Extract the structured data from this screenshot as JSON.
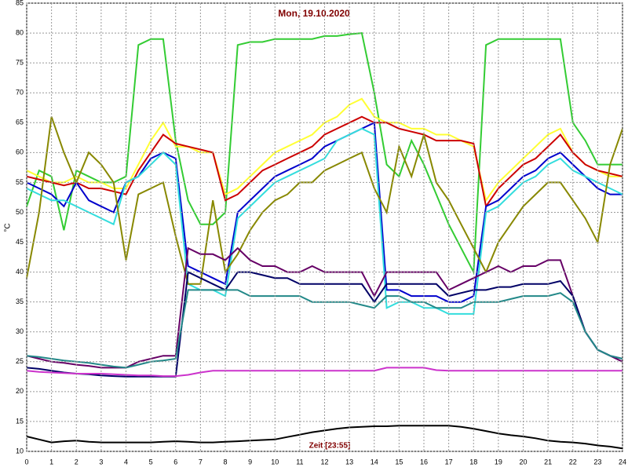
{
  "chart_data": {
    "type": "line",
    "title": "Mon, 19.10.2020",
    "y_label": "°C",
    "annotation": "Zeit [23:55]",
    "x": [
      0,
      0.5,
      1,
      1.5,
      2,
      2.5,
      3,
      3.5,
      4,
      4.5,
      5,
      5.5,
      6,
      6.5,
      7,
      7.5,
      8,
      8.5,
      9,
      9.5,
      10,
      10.5,
      11,
      11.5,
      12,
      12.5,
      13,
      13.5,
      14,
      14.5,
      15,
      15.5,
      16,
      16.5,
      17,
      17.5,
      18,
      18.5,
      19,
      19.5,
      20,
      20.5,
      21,
      21.5,
      22,
      22.5,
      23,
      23.5,
      24
    ],
    "series": [
      {
        "color": "#33cc33",
        "values": [
          51,
          57,
          56,
          47,
          57,
          56,
          55,
          55,
          56,
          78,
          79,
          79,
          62,
          52,
          48,
          48,
          50,
          78,
          78.5,
          78.5,
          79,
          79,
          79,
          79,
          79.5,
          79.5,
          79.8,
          80,
          70,
          58,
          56,
          62,
          58,
          53,
          48,
          44,
          40,
          78,
          79,
          79,
          79,
          79,
          79,
          79,
          65,
          62,
          58,
          58,
          58
        ]
      },
      {
        "color": "#ffff33",
        "values": [
          57,
          56,
          55,
          55,
          56,
          55,
          55,
          54,
          54,
          58,
          62,
          65,
          61,
          61,
          60,
          60,
          53,
          54,
          56,
          58,
          60,
          61,
          62,
          63,
          65,
          66,
          68,
          69,
          66,
          65,
          65,
          64,
          64,
          63,
          63,
          62,
          61,
          52,
          55,
          57,
          59,
          61,
          63,
          64,
          60,
          58,
          57,
          56,
          56
        ]
      },
      {
        "color": "#cc0000",
        "values": [
          56,
          55.5,
          55,
          54.5,
          55,
          54,
          54,
          53.5,
          53,
          57,
          60,
          63,
          61.5,
          61,
          60.5,
          60,
          52,
          53,
          55,
          57,
          58,
          59,
          60,
          61,
          63,
          64,
          65,
          66,
          65,
          65,
          64,
          63.5,
          63,
          62,
          62,
          62,
          61.5,
          51,
          54,
          56,
          58,
          59,
          61,
          63,
          60,
          58,
          57,
          56.5,
          56
        ]
      },
      {
        "color": "#0000cc",
        "values": [
          55,
          54,
          53,
          51,
          55,
          52,
          51,
          50,
          55,
          56,
          59,
          60,
          59,
          41,
          40,
          39,
          38,
          50,
          52,
          54,
          56,
          57,
          58,
          59,
          61,
          62,
          63,
          64,
          65,
          37,
          37,
          36,
          36,
          36,
          35,
          35,
          36,
          51,
          52,
          54,
          56,
          57,
          59,
          60,
          58,
          56,
          54,
          53,
          53
        ]
      },
      {
        "color": "#33dddd",
        "values": [
          54,
          53,
          52,
          52,
          51,
          50,
          49,
          48,
          55,
          56,
          58,
          60,
          58,
          38,
          37,
          37,
          36,
          49,
          51,
          53,
          55,
          56,
          57,
          58,
          59,
          62,
          63,
          64,
          63,
          34,
          35,
          35,
          34,
          34,
          33,
          33,
          33,
          50,
          51,
          53,
          55,
          56,
          58,
          59,
          57,
          56,
          55,
          54,
          53
        ]
      },
      {
        "color": "#888800",
        "values": [
          39,
          50,
          66,
          60,
          55,
          60,
          58,
          55,
          42,
          53,
          54,
          55,
          46,
          38,
          38,
          52,
          40,
          43,
          47,
          50,
          52,
          53,
          55,
          55,
          57,
          58,
          59,
          60,
          54,
          50,
          61,
          56,
          63,
          55,
          52,
          48,
          44,
          40,
          45,
          48,
          51,
          53,
          55,
          55,
          52,
          49,
          45,
          58,
          64
        ]
      },
      {
        "color": "#660066",
        "values": [
          26,
          25.5,
          25,
          24.8,
          24.5,
          24.3,
          24,
          24,
          24,
          25,
          25.5,
          26,
          26,
          44,
          43,
          43,
          42,
          44,
          42,
          41,
          41,
          40,
          40,
          41,
          40,
          40,
          40,
          40,
          36,
          40,
          40,
          40,
          40,
          40,
          37,
          38,
          39,
          40,
          41,
          40,
          41,
          41,
          42,
          42,
          36,
          30,
          27,
          26,
          25
        ]
      },
      {
        "color": "#000066",
        "values": [
          24,
          23.8,
          23.5,
          23.2,
          23,
          22.9,
          22.7,
          22.6,
          22.5,
          22.5,
          22.5,
          22.5,
          22.5,
          40,
          39,
          38,
          37,
          40,
          40,
          39.5,
          39,
          39,
          38,
          38,
          38,
          38,
          38,
          38,
          35,
          38,
          38,
          38,
          38,
          38,
          36,
          36.5,
          37,
          37,
          37.5,
          37.5,
          38,
          38,
          38,
          38.5,
          36,
          30,
          27,
          26,
          25.5
        ]
      },
      {
        "color": "#228888",
        "values": [
          26,
          25.8,
          25.5,
          25.2,
          25,
          24.8,
          24.5,
          24.2,
          24,
          24.5,
          25,
          25.2,
          25.5,
          37,
          37,
          37,
          37,
          37,
          36,
          36,
          36,
          36,
          36,
          35,
          35,
          35,
          35,
          34.5,
          34,
          36,
          36,
          35,
          35,
          34,
          34,
          34,
          35,
          35,
          35,
          35.5,
          36,
          36,
          36,
          36.5,
          35,
          30,
          27,
          26,
          25.5
        ]
      },
      {
        "color": "#cc33cc",
        "values": [
          23.5,
          23.3,
          23.2,
          23.1,
          23,
          23,
          23,
          22.9,
          22.8,
          22.7,
          22.7,
          22.6,
          22.6,
          22.8,
          23.2,
          23.5,
          23.5,
          23.5,
          23.5,
          23.5,
          23.5,
          23.5,
          23.5,
          23.5,
          23.5,
          23.5,
          23.5,
          23.5,
          23.5,
          24,
          24,
          24,
          24,
          23.6,
          23.5,
          23.5,
          23.5,
          23.5,
          23.5,
          23.5,
          23.5,
          23.5,
          23.5,
          23.5,
          23.5,
          23.5,
          23.5,
          23.5,
          23.5
        ]
      },
      {
        "color": "#000000",
        "values": [
          12.5,
          12,
          11.5,
          11.7,
          11.8,
          11.6,
          11.5,
          11.5,
          11.5,
          11.5,
          11.5,
          11.6,
          11.7,
          11.6,
          11.5,
          11.5,
          11.6,
          11.7,
          11.8,
          11.9,
          12,
          12.4,
          12.8,
          13.2,
          13.5,
          13.8,
          14,
          14.1,
          14.2,
          14.2,
          14.3,
          14.3,
          14.3,
          14.3,
          14.3,
          14.1,
          13.8,
          13.4,
          13,
          12.7,
          12.5,
          12.2,
          11.8,
          11.6,
          11.5,
          11.3,
          11,
          10.8,
          10.5
        ]
      }
    ],
    "xlim": [
      0,
      24
    ],
    "xticks": [
      0,
      1,
      2,
      3,
      4,
      5,
      6,
      7,
      8,
      9,
      10,
      11,
      12,
      13,
      14,
      15,
      16,
      17,
      18,
      19,
      20,
      21,
      22,
      23,
      24
    ],
    "ylim": [
      10,
      85
    ],
    "yticks": [
      10,
      15,
      20,
      25,
      30,
      35,
      40,
      45,
      50,
      55,
      60,
      65,
      70,
      75,
      80,
      85
    ],
    "grid": true
  }
}
